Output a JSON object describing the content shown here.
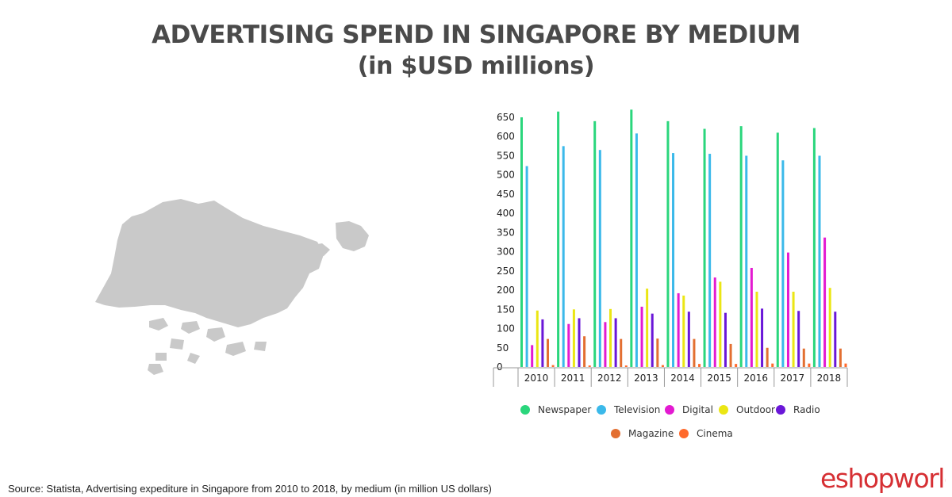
{
  "title": {
    "line1": "ADVERTISING SPEND IN SINGAPORE BY MEDIUM",
    "line2": "(in $USD millions)"
  },
  "source": "Source: Statista, Advertising expediture in Singapore from 2010 to 2018, by medium (in million US dollars)",
  "brand": "eshopworld",
  "chart_data": {
    "type": "bar",
    "title": "",
    "xlabel": "",
    "ylabel": "",
    "ylim": [
      0,
      650
    ],
    "yticks": [
      0,
      50,
      100,
      150,
      200,
      250,
      300,
      350,
      400,
      450,
      500,
      550,
      600,
      650
    ],
    "categories": [
      "2010",
      "2011",
      "2012",
      "2013",
      "2014",
      "2015",
      "2016",
      "2017",
      "2018"
    ],
    "legend_position": "bottom",
    "series": [
      {
        "name": "Newspaper",
        "color": "#2ad67c",
        "values": [
          650,
          665,
          640,
          670,
          640,
          620,
          627,
          610,
          622
        ]
      },
      {
        "name": "Television",
        "color": "#3bb9ea",
        "values": [
          523,
          575,
          565,
          608,
          557,
          555,
          550,
          538,
          550
        ]
      },
      {
        "name": "Digital",
        "color": "#e31ad1",
        "values": [
          57,
          112,
          117,
          157,
          192,
          233,
          258,
          298,
          337
        ]
      },
      {
        "name": "Outdoor",
        "color": "#ebe614",
        "values": [
          147,
          150,
          151,
          204,
          186,
          222,
          196,
          196,
          206
        ]
      },
      {
        "name": "Radio",
        "color": "#6a17d8",
        "values": [
          124,
          127,
          127,
          139,
          144,
          141,
          152,
          146,
          144
        ]
      },
      {
        "name": "Magazine",
        "color": "#e36f31",
        "values": [
          73,
          80,
          73,
          74,
          73,
          60,
          50,
          48,
          48
        ]
      },
      {
        "name": "Cinema",
        "color": "#ff6a2c",
        "values": [
          5,
          4,
          4,
          5,
          8,
          8,
          9,
          9,
          9
        ]
      }
    ]
  }
}
